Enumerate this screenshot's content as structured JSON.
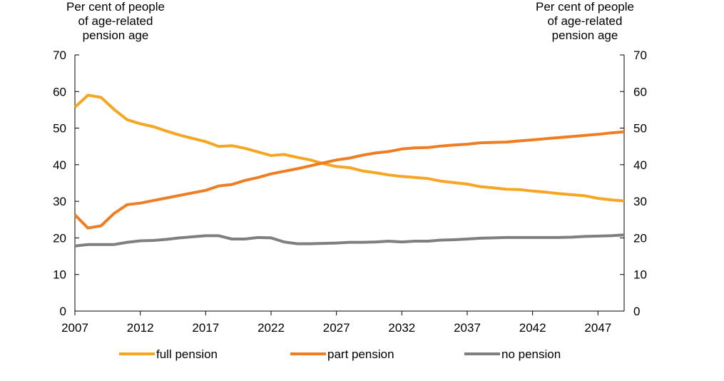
{
  "chart_data": {
    "type": "line",
    "x": [
      2007,
      2008,
      2009,
      2010,
      2011,
      2012,
      2013,
      2014,
      2015,
      2016,
      2017,
      2018,
      2019,
      2020,
      2021,
      2022,
      2023,
      2024,
      2025,
      2026,
      2027,
      2028,
      2029,
      2030,
      2031,
      2032,
      2033,
      2034,
      2035,
      2036,
      2037,
      2038,
      2039,
      2040,
      2041,
      2042,
      2043,
      2044,
      2045,
      2046,
      2047,
      2048,
      2049
    ],
    "series": [
      {
        "name": "full pension",
        "color": "#F5A623",
        "values": [
          55.7,
          59.0,
          58.4,
          55.1,
          52.3,
          51.2,
          50.4,
          49.2,
          48.1,
          47.2,
          46.3,
          45.0,
          45.2,
          44.5,
          43.5,
          42.5,
          42.8,
          42.0,
          41.3,
          40.3,
          39.5,
          39.2,
          38.3,
          37.8,
          37.2,
          36.8,
          36.5,
          36.2,
          35.5,
          35.1,
          34.7,
          34.0,
          33.7,
          33.3,
          33.2,
          32.8,
          32.5,
          32.1,
          31.8,
          31.5,
          30.8,
          30.4,
          30.1
        ]
      },
      {
        "name": "part pension",
        "color": "#EE7D23",
        "values": [
          26.3,
          22.7,
          23.3,
          26.7,
          29.1,
          29.5,
          30.2,
          30.9,
          31.6,
          32.3,
          33.0,
          34.2,
          34.6,
          35.7,
          36.5,
          37.5,
          38.2,
          38.9,
          39.7,
          40.5,
          41.3,
          41.8,
          42.6,
          43.2,
          43.6,
          44.3,
          44.6,
          44.7,
          45.1,
          45.4,
          45.6,
          46.0,
          46.1,
          46.2,
          46.5,
          46.8,
          47.1,
          47.4,
          47.7,
          48.0,
          48.3,
          48.7,
          49.0
        ]
      },
      {
        "name": "no pension",
        "color": "#7F7F7F",
        "values": [
          17.8,
          18.2,
          18.2,
          18.2,
          18.8,
          19.2,
          19.3,
          19.6,
          20.0,
          20.3,
          20.6,
          20.6,
          19.7,
          19.7,
          20.1,
          20.0,
          18.9,
          18.4,
          18.4,
          18.5,
          18.6,
          18.8,
          18.8,
          18.9,
          19.1,
          18.9,
          19.1,
          19.1,
          19.4,
          19.5,
          19.7,
          19.9,
          20.0,
          20.1,
          20.1,
          20.1,
          20.1,
          20.1,
          20.2,
          20.4,
          20.5,
          20.6,
          20.8
        ]
      }
    ],
    "ylim": [
      0,
      70
    ],
    "xlim": [
      2007,
      2049
    ],
    "yticks": [
      0,
      10,
      20,
      30,
      40,
      50,
      60,
      70
    ],
    "xticks": [
      2007,
      2012,
      2017,
      2022,
      2027,
      2032,
      2037,
      2042,
      2047
    ],
    "ylabel_left": [
      "Per cent of people",
      "of age-related",
      "pension age"
    ],
    "ylabel_right": [
      "Per cent of people",
      "of age-related",
      "pension age"
    ],
    "grid": false,
    "legend": "bottom"
  }
}
